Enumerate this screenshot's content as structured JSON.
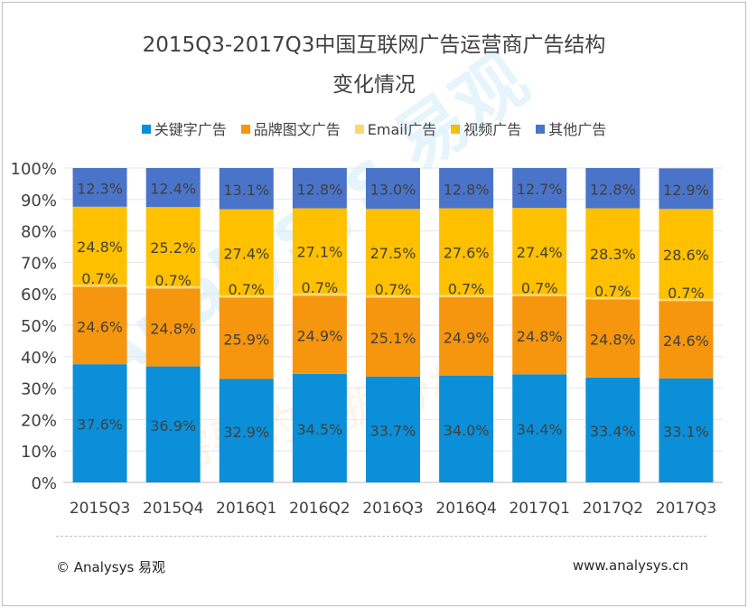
{
  "chart_data": {
    "type": "bar",
    "stacked": true,
    "title_lines": [
      "2015Q3-2017Q3中国互联网广告运营商广告结构",
      "变化情况"
    ],
    "categories": [
      "2015Q3",
      "2015Q4",
      "2016Q1",
      "2016Q2",
      "2016Q3",
      "2016Q4",
      "2017Q1",
      "2017Q2",
      "2017Q3"
    ],
    "series": [
      {
        "name": "关键字广告",
        "color": "#0b8fd8",
        "values": [
          37.6,
          36.9,
          32.9,
          34.5,
          33.7,
          34.0,
          34.4,
          33.4,
          33.1
        ],
        "labels": [
          "37.6%",
          "36.9%",
          "32.9%",
          "34.5%",
          "33.7%",
          "34.0%",
          "34.4%",
          "33.4%",
          "33.1%"
        ]
      },
      {
        "name": "品牌图文广告",
        "color": "#f6960e",
        "values": [
          24.6,
          24.8,
          25.9,
          24.9,
          25.1,
          24.9,
          24.8,
          24.8,
          24.6
        ],
        "labels": [
          "24.6%",
          "24.8%",
          "25.9%",
          "24.9%",
          "25.1%",
          "24.9%",
          "24.8%",
          "24.8%",
          "24.6%"
        ]
      },
      {
        "name": "Email广告",
        "color": "#fcd873",
        "values": [
          0.7,
          0.7,
          0.7,
          0.7,
          0.7,
          0.7,
          0.7,
          0.7,
          0.7
        ],
        "labels": [
          "0.7%",
          "0.7%",
          "0.7%",
          "0.7%",
          "0.7%",
          "0.7%",
          "0.7%",
          "0.7%",
          "0.7%"
        ]
      },
      {
        "name": "视频广告",
        "color": "#ffc000",
        "values": [
          24.8,
          25.2,
          27.4,
          27.1,
          27.5,
          27.6,
          27.4,
          28.3,
          28.6
        ],
        "labels": [
          "24.8%",
          "25.2%",
          "27.4%",
          "27.1%",
          "27.5%",
          "27.6%",
          "27.4%",
          "28.3%",
          "28.6%"
        ]
      },
      {
        "name": "其他广告",
        "color": "#4a74c9",
        "values": [
          12.3,
          12.4,
          13.1,
          12.8,
          13.0,
          12.8,
          12.7,
          12.8,
          12.9
        ],
        "labels": [
          "12.3%",
          "12.4%",
          "13.1%",
          "12.8%",
          "13.0%",
          "12.8%",
          "12.7%",
          "12.8%",
          "12.9%"
        ]
      }
    ],
    "y_ticks": [
      "0%",
      "10%",
      "20%",
      "30%",
      "40%",
      "50%",
      "60%",
      "70%",
      "80%",
      "90%",
      "100%"
    ],
    "ylim": [
      0,
      100
    ],
    "legend_position": "top"
  },
  "footer": {
    "copyright": "© Analysys 易观",
    "website": "www.analysys.cn"
  },
  "watermark": {
    "brand": "Analysys 易观",
    "slogan": "需要的数据分析"
  }
}
